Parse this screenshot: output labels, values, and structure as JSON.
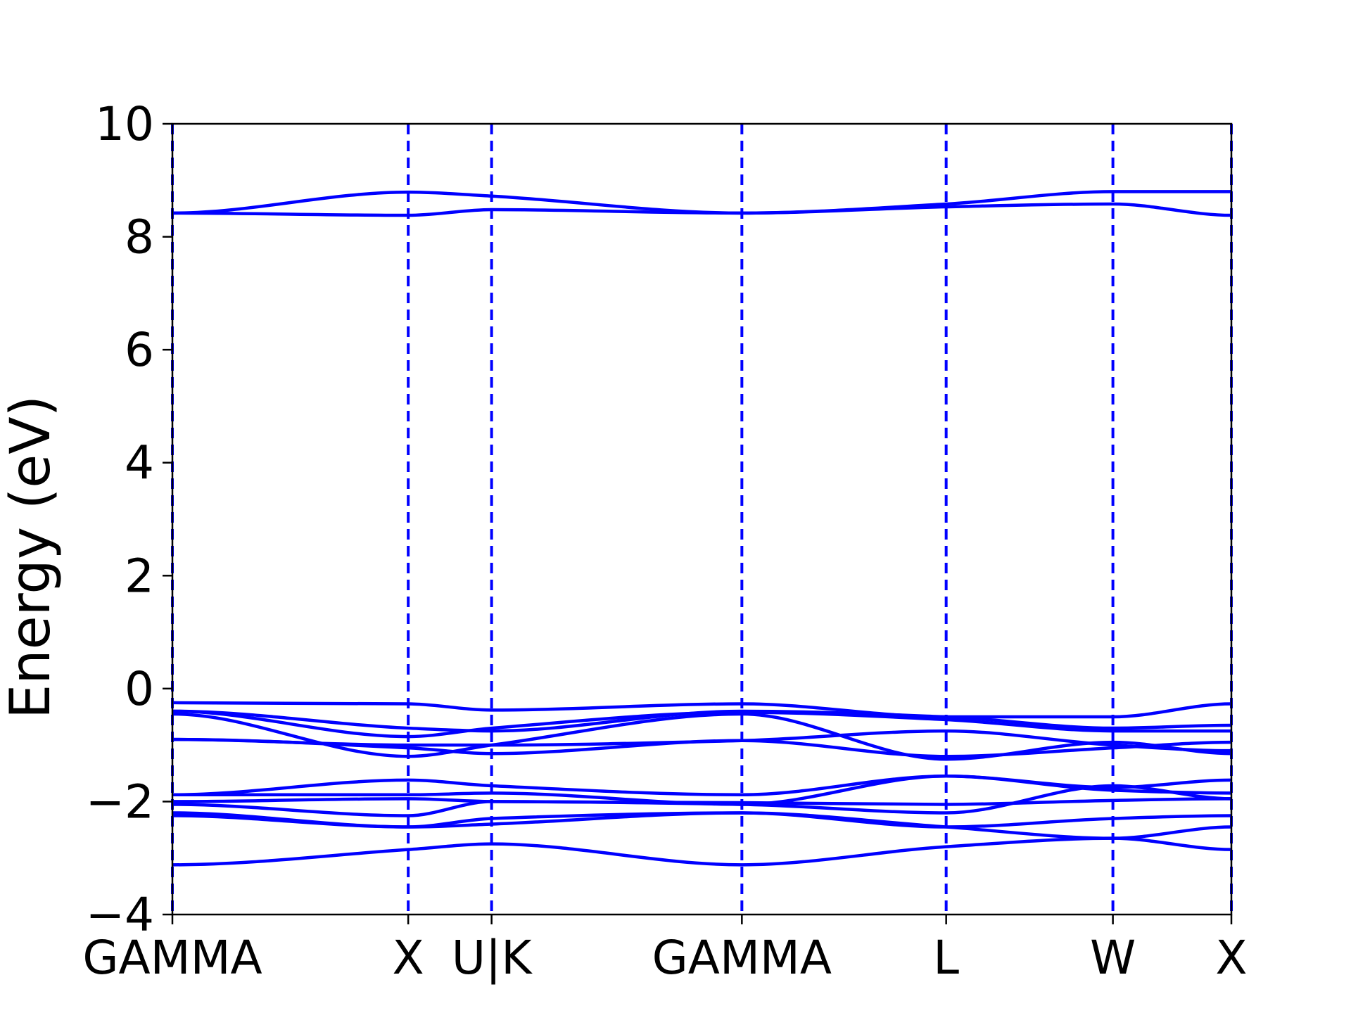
{
  "chart_data": {
    "type": "line",
    "title": "",
    "xlabel": "",
    "ylabel": "Energy (eV)",
    "ylim": [
      -4,
      10
    ],
    "yticks": [
      {
        "value": -4,
        "label": "−4"
      },
      {
        "value": -2,
        "label": "−2"
      },
      {
        "value": 0,
        "label": "0"
      },
      {
        "value": 2,
        "label": "2"
      },
      {
        "value": 4,
        "label": "4"
      },
      {
        "value": 6,
        "label": "6"
      },
      {
        "value": 8,
        "label": "8"
      },
      {
        "value": 10,
        "label": "10"
      }
    ],
    "xlim": [
      0,
      5.64
    ],
    "kpoints": [
      {
        "label": "GAMMA",
        "x": 0.0
      },
      {
        "label": "X",
        "x": 1.256
      },
      {
        "label": "U|K",
        "x": 1.7
      },
      {
        "label": "GAMMA",
        "x": 3.033
      },
      {
        "label": "L",
        "x": 4.121
      },
      {
        "label": "W",
        "x": 5.009
      },
      {
        "label": "X",
        "x": 5.64
      }
    ],
    "grid": false,
    "line_color": "#0000ff",
    "kpoint_line_style": "dashed",
    "series": [
      {
        "values": [
          8.42,
          8.79,
          8.72,
          8.42,
          8.58,
          8.8,
          8.8
        ]
      },
      {
        "values": [
          8.42,
          8.38,
          8.48,
          8.42,
          8.53,
          8.58,
          8.38
        ]
      },
      {
        "values": [
          -0.25,
          -0.27,
          -0.38,
          -0.27,
          -0.5,
          -0.5,
          -0.27
        ]
      },
      {
        "values": [
          -0.4,
          -0.7,
          -0.75,
          -0.4,
          -0.5,
          -0.7,
          -0.65
        ]
      },
      {
        "values": [
          -0.4,
          -0.85,
          -0.7,
          -0.42,
          -0.55,
          -0.75,
          -0.75
        ]
      },
      {
        "values": [
          -0.45,
          -1.2,
          -1.0,
          -0.45,
          -1.25,
          -0.95,
          -1.15
        ]
      },
      {
        "values": [
          -0.9,
          -1.05,
          -1.15,
          -0.92,
          -1.2,
          -1.05,
          -0.95
        ]
      },
      {
        "values": [
          -0.9,
          -1.0,
          -1.0,
          -0.92,
          -0.75,
          -1.0,
          -1.1
        ]
      },
      {
        "values": [
          -1.88,
          -1.62,
          -1.72,
          -1.88,
          -1.55,
          -1.75,
          -1.62
        ]
      },
      {
        "values": [
          -1.88,
          -1.88,
          -1.85,
          -2.05,
          -1.55,
          -1.8,
          -1.85
        ]
      },
      {
        "values": [
          -2.0,
          -1.95,
          -2.0,
          -2.02,
          -2.05,
          -1.98,
          -1.95
        ]
      },
      {
        "values": [
          -2.05,
          -2.25,
          -2.0,
          -2.05,
          -2.2,
          -1.72,
          -1.95
        ]
      },
      {
        "values": [
          -2.2,
          -2.45,
          -2.3,
          -2.2,
          -2.45,
          -2.3,
          -2.25
        ]
      },
      {
        "values": [
          -2.25,
          -2.45,
          -2.4,
          -2.2,
          -2.45,
          -2.65,
          -2.45
        ]
      },
      {
        "values": [
          -3.12,
          -2.85,
          -2.75,
          -3.12,
          -2.8,
          -2.65,
          -2.85
        ]
      }
    ]
  }
}
